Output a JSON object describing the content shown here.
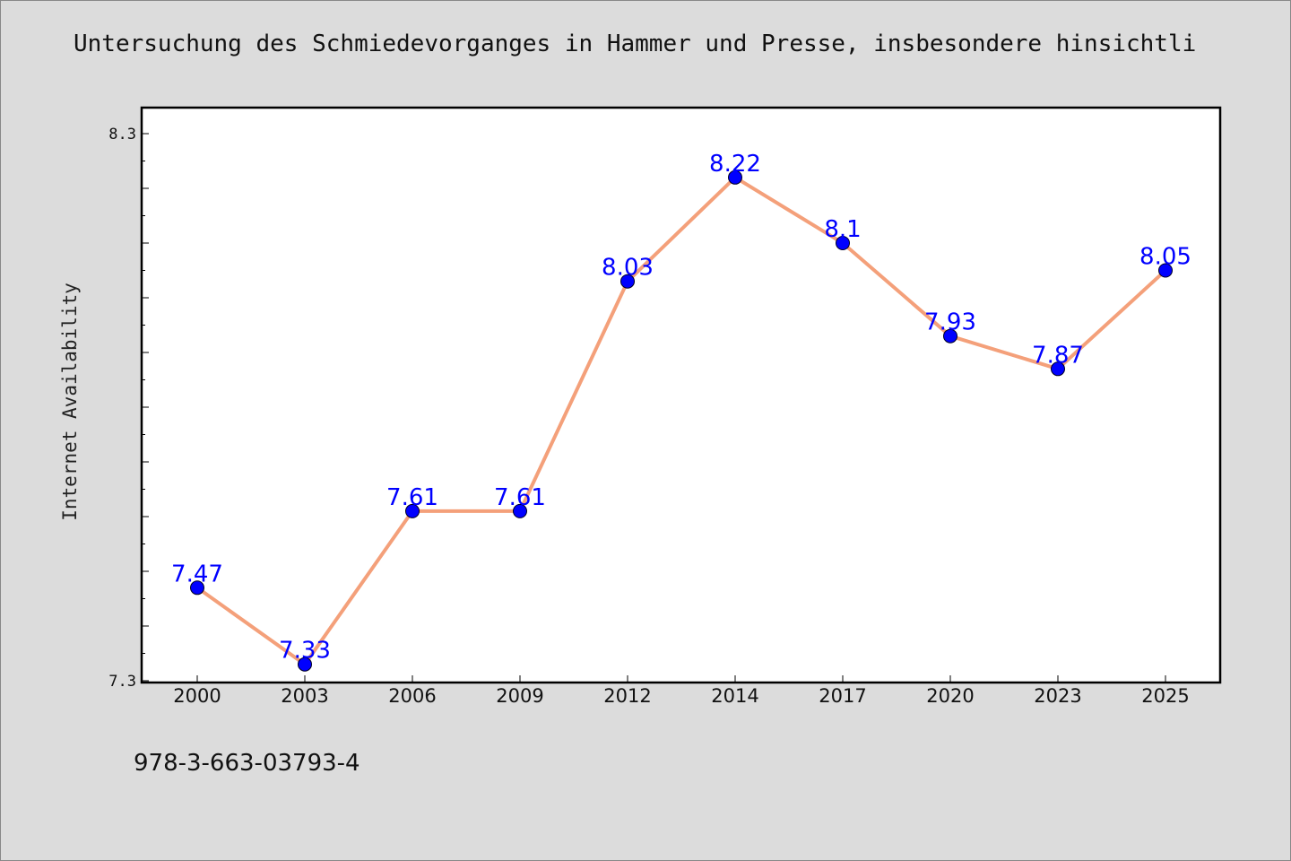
{
  "chart_data": {
    "type": "line",
    "title": "Untersuchung des Schmiedevorganges in Hammer und Presse, insbesondere hinsichtli",
    "xlabel": "",
    "ylabel": "Internet Availability",
    "x": [
      "2000",
      "2003",
      "2006",
      "2009",
      "2012",
      "2014",
      "2017",
      "2020",
      "2023",
      "2025"
    ],
    "series": [
      {
        "values": [
          7.47,
          7.33,
          7.61,
          7.61,
          8.03,
          8.22,
          8.1,
          7.93,
          7.87,
          8.05
        ],
        "labels": [
          "7.47",
          "7.33",
          "7.61",
          "7.61",
          "8.03",
          "8.22",
          "8.1",
          "7.93",
          "7.87",
          "8.05"
        ],
        "line_color": "#f4a07a",
        "marker_color": "#0000ff"
      }
    ],
    "ylim": [
      7.3,
      8.3
    ],
    "yticks_labeled": [
      "7.3",
      "8.3"
    ],
    "grid": false,
    "legend": "none"
  },
  "footnote": "978-3-663-03793-4",
  "colors": {
    "background": "#dcdcdc",
    "plot_background": "#ffffff",
    "line": "#f4a07a",
    "marker": "#0000ff",
    "data_label": "#0000ff"
  }
}
